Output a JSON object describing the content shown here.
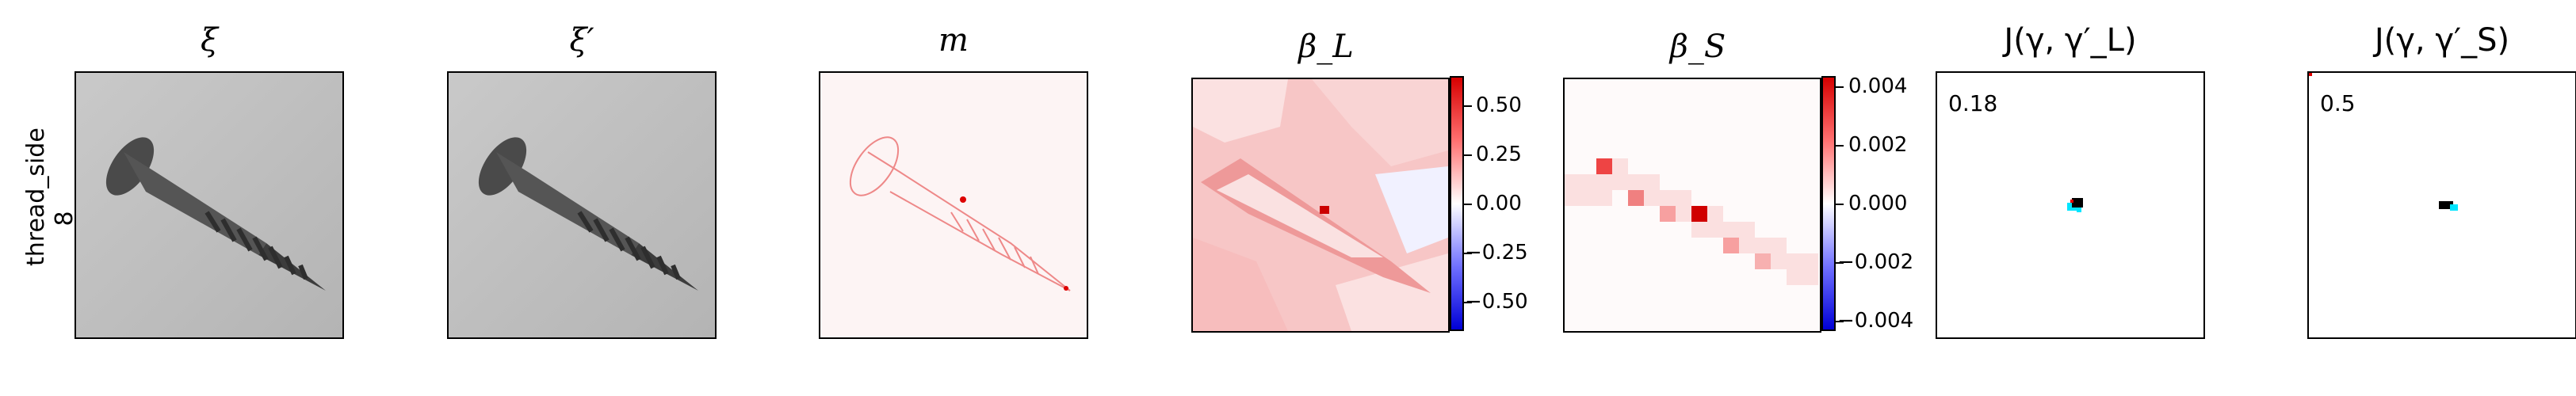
{
  "row_label_line1": "thread_side",
  "row_label_line2": "8",
  "panels": [
    {
      "title": "ξ"
    },
    {
      "title": "ξ′"
    },
    {
      "title": "m"
    },
    {
      "title": "β_L"
    },
    {
      "title": "β_S"
    },
    {
      "title": "J(γ, γ′_L)"
    },
    {
      "title": "J(γ, γ′_S)"
    }
  ],
  "colorbar_L": {
    "ticks": [
      "0.50",
      "0.25",
      "0.00",
      "−0.25",
      "−0.50"
    ]
  },
  "colorbar_S": {
    "ticks": [
      "0.004",
      "0.002",
      "0.000",
      "−0.002",
      "−0.004"
    ]
  },
  "scores": {
    "L": "0.18",
    "S": "0.5"
  },
  "colors": {
    "positive": "#e00000",
    "negative": "#0000e0",
    "overlay_a": "#00e5ff",
    "overlay_b": "#000000"
  }
}
